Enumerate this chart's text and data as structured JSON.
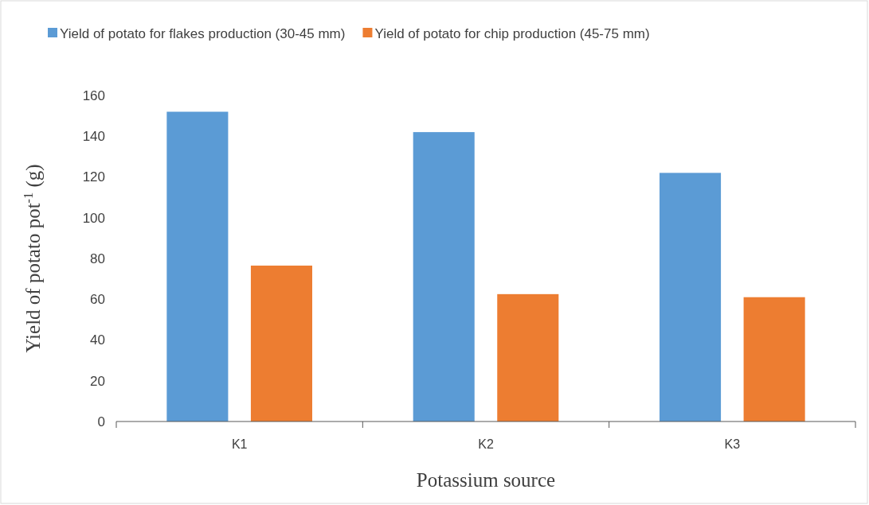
{
  "chart_data": {
    "type": "bar",
    "xlabel": "Potassium source",
    "ylabel": "Yield of potato pot$^{-1}$ (g)",
    "categories": [
      "K1",
      "K2",
      "K3"
    ],
    "series": [
      {
        "name": "Yield of potato for flakes production (30-45 mm)",
        "color": "#5b9bd5",
        "values": [
          152,
          142,
          122
        ]
      },
      {
        "name": "Yield of potato for chip production (45-75 mm)",
        "color": "#ed7d31",
        "values": [
          76.5,
          62.5,
          61
        ]
      }
    ],
    "ylim": [
      0,
      160
    ],
    "yticks": [
      0,
      20,
      40,
      60,
      80,
      100,
      120,
      140,
      160
    ],
    "legend": "top",
    "grid": false
  }
}
